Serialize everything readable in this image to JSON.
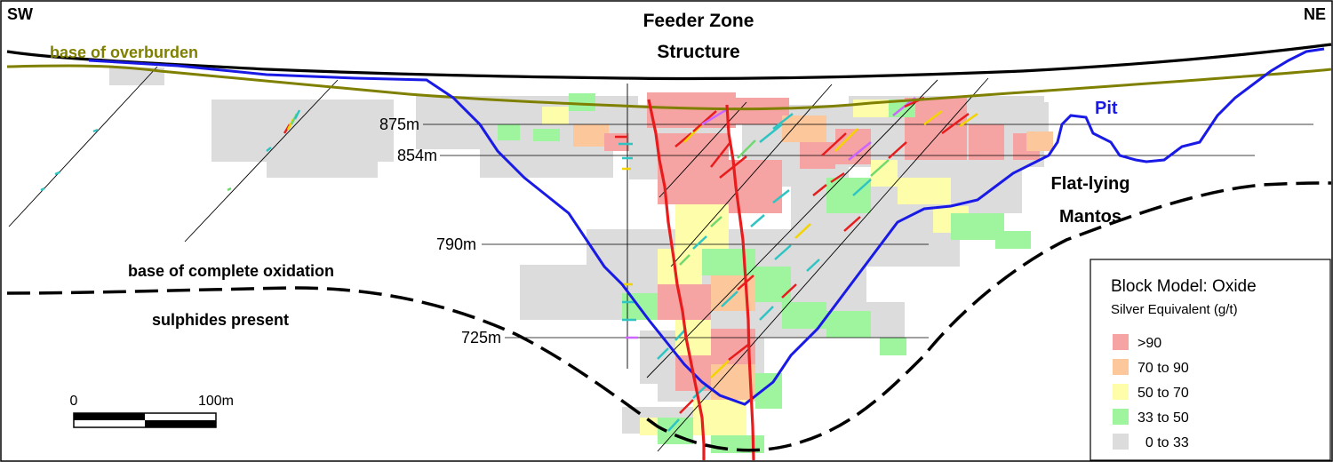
{
  "compass": {
    "left": "SW",
    "right": "NE"
  },
  "title": [
    "Feeder Zone",
    "Structure"
  ],
  "labels": {
    "overburden": "base of overburden",
    "pit": "Pit",
    "mantos": [
      "Flat-lying",
      "Mantos"
    ],
    "oxidation": "base of complete oxidation",
    "sulphides": "sulphides present"
  },
  "levels": [
    {
      "label": "875m"
    },
    {
      "label": "854m"
    },
    {
      "label": "790m"
    },
    {
      "label": "725m"
    }
  ],
  "scale_bar": {
    "start": "0",
    "end": "100m"
  },
  "legend": {
    "title": "Block Model: Oxide",
    "subtitle": "Silver Equivalent (g/t)",
    "items": [
      {
        "label": ">90",
        "color": "#f6a3a3"
      },
      {
        "label": "70 to 90",
        "color": "#fbc79b"
      },
      {
        "label": "50 to 70",
        "color": "#fdfdaa"
      },
      {
        "label": "33 to 50",
        "color": "#9ef59e"
      },
      {
        "label": "  0 to 33",
        "color": "#dcdcdc"
      }
    ]
  },
  "colors": {
    "topography": "#000000",
    "overburden": "#808000",
    "pit": "#1a1ae6",
    "feeder": "#e81c1c",
    "oxidation": "#000000"
  }
}
